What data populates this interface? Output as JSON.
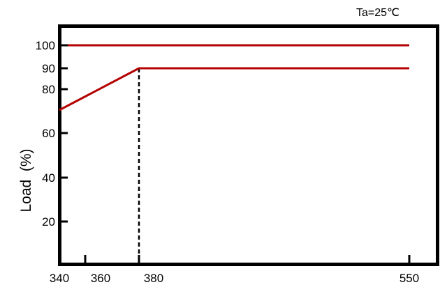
{
  "chart_data": {
    "type": "line",
    "annotation": "Ta=25℃",
    "ylabel": "Load  (%)",
    "xlabel": "",
    "x_ticks": [
      {
        "label": "340",
        "value": 340
      },
      {
        "label": "360",
        "value": 360
      },
      {
        "label": "380",
        "value": 380
      },
      {
        "label": "550",
        "value": 550
      }
    ],
    "y_ticks": [
      {
        "label": "100",
        "value": 100
      },
      {
        "label": "90",
        "value": 90
      },
      {
        "label": "80",
        "value": 80
      },
      {
        "label": "60",
        "value": 60
      },
      {
        "label": "40",
        "value": 40
      },
      {
        "label": "20",
        "value": 20
      }
    ],
    "series": [
      {
        "values": [
          {
            "x": 340,
            "y": 100
          },
          {
            "x": 550,
            "y": 100
          }
        ]
      },
      {
        "values": [
          {
            "x": 340,
            "y": 75
          },
          {
            "x": 380,
            "y": 90
          },
          {
            "x": 550,
            "y": 90
          }
        ]
      }
    ],
    "reference_line": {
      "x": 380,
      "style": "dashed"
    },
    "colors": {
      "series": "#b40000",
      "axis": "#000000"
    },
    "grid": false
  }
}
